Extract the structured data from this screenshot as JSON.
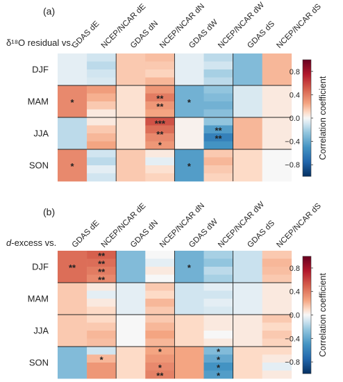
{
  "colors": {
    "map": [
      [
        -1.0,
        "#053061"
      ],
      [
        -0.75,
        "#2166ac"
      ],
      [
        -0.5,
        "#4393c3"
      ],
      [
        -0.25,
        "#92c5de"
      ],
      [
        -0.1,
        "#d1e5f0"
      ],
      [
        0.0,
        "#f7f7f7"
      ],
      [
        0.1,
        "#fddbc7"
      ],
      [
        0.25,
        "#f4a582"
      ],
      [
        0.5,
        "#d6604d"
      ],
      [
        0.75,
        "#b2182b"
      ],
      [
        1.0,
        "#67001f"
      ]
    ],
    "grid_line": "#222222"
  },
  "colorbar": {
    "label": "Correlation coefficient",
    "ticks": [
      "0.8",
      "0.4",
      "0.0",
      "−0.4",
      "−0.8"
    ],
    "tick_values": [
      0.8,
      0.4,
      0.0,
      -0.4,
      -0.8
    ],
    "range": [
      -1.0,
      1.0
    ]
  },
  "chart_data": [
    {
      "type": "heatmap",
      "panel": "(a)",
      "ylabel": "δ¹⁸O residual vs.",
      "columns": [
        "GDAS dE",
        "NCEP/NCAR dE",
        "GDAS dN",
        "NCEP/NCAR dN",
        "GDAS dW",
        "NCEP/NCAR dW",
        "GDAS dS",
        "NCEP/NCAR dS"
      ],
      "rows": [
        "DJF",
        "MAM",
        "JJA",
        "SON"
      ],
      "cells": [
        [
          [
            -0.05
          ],
          [
            -0.1,
            -0.15,
            -0.1,
            -0.08
          ],
          [
            0.15
          ],
          [
            0.18,
            0.15,
            0.12,
            0.2
          ],
          [
            -0.05
          ],
          [
            -0.15,
            -0.1,
            -0.2,
            -0.15
          ],
          [
            -0.3
          ],
          [
            0.2
          ]
        ],
        [
          [
            0.35
          ],
          [
            0.28,
            0.22,
            0.15,
            0.05
          ],
          [
            0.08
          ],
          [
            0.3,
            0.4,
            0.3,
            0.25
          ],
          [
            -0.35
          ],
          [
            -0.25,
            -0.3,
            -0.35,
            -0.28
          ],
          [
            -0.08
          ],
          [
            0.05
          ]
        ],
        [
          [
            -0.15
          ],
          [
            0.05,
            0.15,
            0.2,
            0.25
          ],
          [
            0.08
          ],
          [
            0.55,
            0.45,
            0.35,
            0.3
          ],
          [
            0.02
          ],
          [
            -0.25,
            -0.45,
            -0.6,
            -0.5
          ],
          [
            0.2
          ],
          [
            0.05
          ]
        ],
        [
          [
            0.35
          ],
          [
            -0.1,
            -0.15,
            -0.05,
            -0.1
          ],
          [
            0.15
          ],
          [
            0.05,
            -0.05,
            0.08,
            0.12
          ],
          [
            -0.45
          ],
          [
            0.15,
            0.2,
            0.15,
            0.12
          ],
          [
            0.1
          ],
          [
            0.0
          ]
        ]
      ],
      "stars": [
        [
          "",
          "",
          "",
          "",
          "",
          "",
          "",
          ""
        ],
        [
          "*",
          "",
          "",
          [
            "",
            "**",
            "**",
            ""
          ],
          "*",
          "",
          "",
          ""
        ],
        [
          "",
          "",
          "",
          [
            "***",
            "**",
            "*"
          ],
          "",
          [
            "",
            "**",
            "**",
            ""
          ],
          "",
          ""
        ],
        [
          "*",
          "",
          "",
          "",
          "*",
          "",
          "",
          ""
        ]
      ]
    },
    {
      "type": "heatmap",
      "panel": "(b)",
      "ylabel_italic": "d",
      "ylabel_rest": "-excess vs.",
      "columns": [
        "GDAS dE",
        "NCEP/NCAR dE",
        "GDAS dN",
        "NCEP/NCAR dN",
        "GDAS dW",
        "NCEP/NCAR dW",
        "GDAS dS",
        "NCEP/NCAR dS"
      ],
      "rows": [
        "DJF",
        "MAM",
        "JJA",
        "SON"
      ],
      "cells": [
        [
          [
            0.45
          ],
          [
            0.5,
            0.45,
            0.4,
            0.35
          ],
          [
            -0.3
          ],
          [
            0.0,
            -0.05,
            0.05,
            0.0
          ],
          [
            -0.35
          ],
          [
            -0.2,
            -0.25,
            -0.15,
            -0.2
          ],
          [
            -0.12
          ],
          [
            0.15,
            0.2,
            0.18,
            0.15
          ]
        ],
        [
          [
            0.15
          ],
          [
            0.05,
            -0.05,
            0.05,
            0.1
          ],
          [
            -0.05
          ],
          [
            0.15,
            0.1,
            0.2,
            0.15
          ],
          [
            -0.1
          ],
          [
            -0.05,
            -0.1,
            -0.05,
            -0.08
          ],
          [
            -0.05
          ],
          [
            0.05
          ]
        ],
        [
          [
            0.15
          ],
          [
            0.1,
            0.15,
            0.2,
            0.18
          ],
          [
            0.0
          ],
          [
            0.15,
            0.2,
            0.25,
            0.2
          ],
          [
            0.1
          ],
          [
            0.05,
            0.05,
            0.0,
            0.05
          ],
          [
            0.05
          ],
          [
            0.15,
            0.1,
            0.15,
            0.12
          ]
        ],
        [
          [
            -0.3
          ],
          [
            -0.1,
            0.2,
            0.3,
            0.3
          ],
          [
            0.1
          ],
          [
            0.25,
            0.3,
            0.35,
            0.38
          ],
          [
            0.25
          ],
          [
            -0.3,
            -0.4,
            -0.5,
            -0.45
          ],
          [
            0.1
          ],
          [
            0.1,
            0.05,
            -0.05,
            0.05
          ]
        ]
      ],
      "stars": [
        [
          "**",
          [
            "**",
            "**",
            "**",
            "**"
          ],
          "",
          "",
          "*",
          "",
          "",
          ""
        ],
        [
          "",
          "",
          "",
          "",
          "",
          "",
          "",
          ""
        ],
        [
          "",
          "",
          "",
          "",
          "",
          "",
          "",
          ""
        ],
        [
          "",
          [
            "",
            "*",
            "",
            ""
          ],
          "",
          [
            "*",
            "",
            "*",
            "**"
          ],
          "",
          [
            "*",
            "*",
            "*",
            "*"
          ],
          "",
          ""
        ]
      ]
    }
  ]
}
